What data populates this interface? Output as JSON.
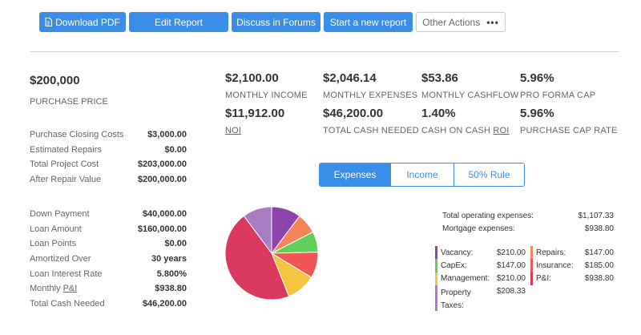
{
  "toolbar": {
    "download_pdf": "Download PDF",
    "edit_report": "Edit Report",
    "discuss_forums": "Discuss in Forums",
    "new_report": "Start a new report",
    "other_actions": "Other Actions",
    "other_actions_dots": "•••"
  },
  "purchase": {
    "price": "$200,000",
    "label": "PURCHASE PRICE"
  },
  "costs": [
    {
      "label": "Purchase Closing Costs",
      "value": "$3,000.00"
    },
    {
      "label": "Estimated Repairs",
      "value": "$0.00"
    },
    {
      "label": "Total Project Cost",
      "value": "$203,000.00"
    },
    {
      "label": "After Repair Value",
      "value": "$200,000.00"
    }
  ],
  "loan": [
    {
      "label": "Down Payment",
      "value": "$40,000.00"
    },
    {
      "label": "Loan Amount",
      "value": "$160,000.00"
    },
    {
      "label": "Loan Points",
      "value": "$0.00"
    },
    {
      "label": "Amortized Over",
      "value": "30 years"
    },
    {
      "label": "Loan Interest Rate",
      "value": "5.800%"
    },
    {
      "label_pre": "Monthly ",
      "label_u": "P&I",
      "value": "$938.80"
    },
    {
      "label": "Total Cash Needed",
      "value": "$46,200.00"
    }
  ],
  "metrics": {
    "monthly_income": {
      "value": "$2,100.00",
      "label": "MONTHLY INCOME"
    },
    "monthly_expenses": {
      "value": "$2,046.14",
      "label": "MONTHLY EXPENSES"
    },
    "monthly_cashflow": {
      "value": "$53.86",
      "label": "MONTHLY CASHFLOW"
    },
    "pro_forma_cap": {
      "value": "5.96%",
      "label": "PRO FORMA CAP"
    },
    "noi": {
      "value": "$11,912.00",
      "label": "NOI"
    },
    "total_cash_needed": {
      "value": "$46,200.00",
      "label": "TOTAL CASH NEEDED"
    },
    "coc_roi": {
      "value": "1.40%",
      "label_pre": "CASH ON CASH ",
      "label_u": "ROI"
    },
    "purchase_cap_rate": {
      "value": "5.96%",
      "label": "PURCHASE CAP RATE"
    }
  },
  "tabs": {
    "expenses": "Expenses",
    "income": "Income",
    "rule": "50% Rule",
    "active": "Expenses"
  },
  "totals": {
    "operating_label": "Total operating expenses:",
    "operating_value": "$1,107.33",
    "mortgage_label": "Mortgage expenses:",
    "mortgage_value": "$938.80"
  },
  "legend_left": [
    {
      "label": "Vacancy:",
      "value": "$210.00",
      "color": "#8e44ad"
    },
    {
      "label": "CapEx:",
      "value": "$147.00",
      "color": "#5fce5a"
    },
    {
      "label": "Management:",
      "value": "$210.00",
      "color": "#f4c542"
    },
    {
      "label": "Property Taxes:",
      "value": "$208.33",
      "color": "#a97cc4"
    }
  ],
  "legend_right": [
    {
      "label": "Repairs:",
      "value": "$147.00",
      "color": "#f5845a"
    },
    {
      "label": "Insurance:",
      "value": "$185.00",
      "color": "#f05555"
    },
    {
      "label": "P&I:",
      "value": "$938.80",
      "color": "#d9385f"
    }
  ],
  "chart_data": {
    "type": "pie",
    "categories": [
      "Vacancy",
      "Repairs",
      "CapEx",
      "Insurance",
      "Management",
      "P&I",
      "Property Taxes"
    ],
    "values": [
      210.0,
      147.0,
      147.0,
      185.0,
      210.0,
      938.8,
      208.33
    ],
    "colors": [
      "#8e44ad",
      "#f5845a",
      "#5fce5a",
      "#f05555",
      "#f4c542",
      "#d9385f",
      "#a97cc4"
    ]
  }
}
